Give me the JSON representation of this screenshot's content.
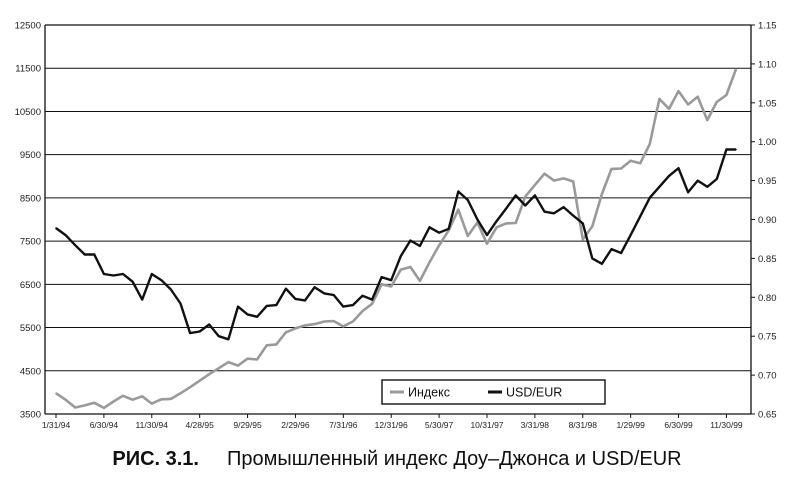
{
  "caption": {
    "figure_label": "РИС. 3.1.",
    "text": "Промышленный индекс Доу–Джонса и USD/EUR"
  },
  "chart_data": {
    "type": "line",
    "title": "",
    "x": [
      "1/31/94",
      "2/28/94",
      "3/31/94",
      "4/30/94",
      "5/31/94",
      "6/30/94",
      "7/31/94",
      "8/31/94",
      "9/30/94",
      "10/31/94",
      "11/30/94",
      "12/31/94",
      "1/31/95",
      "2/28/95",
      "3/31/95",
      "4/28/95",
      "5/31/95",
      "6/30/95",
      "7/31/95",
      "8/31/95",
      "9/29/95",
      "10/31/95",
      "11/30/95",
      "12/31/95",
      "1/31/96",
      "2/29/96",
      "3/31/96",
      "4/30/96",
      "5/31/96",
      "6/30/96",
      "7/31/96",
      "8/31/96",
      "9/30/96",
      "10/31/96",
      "11/30/96",
      "12/31/96",
      "1/31/97",
      "2/28/97",
      "3/31/97",
      "4/30/97",
      "5/30/97",
      "6/30/97",
      "7/31/97",
      "8/31/97",
      "9/30/97",
      "10/31/97",
      "11/30/97",
      "12/31/97",
      "1/31/98",
      "2/28/98",
      "3/31/98",
      "4/30/98",
      "5/31/98",
      "6/30/98",
      "7/31/98",
      "8/31/98",
      "9/30/98",
      "10/31/98",
      "11/30/98",
      "12/31/98",
      "1/29/99",
      "2/28/99",
      "3/31/99",
      "4/30/99",
      "5/31/99",
      "6/30/99",
      "7/31/99",
      "8/31/99",
      "9/30/99",
      "10/31/99",
      "11/30/99",
      "12/31/99"
    ],
    "x_tick_labels": [
      "1/31/94",
      "6/30/94",
      "11/30/94",
      "4/28/95",
      "9/29/95",
      "2/29/96",
      "7/31/96",
      "12/31/96",
      "5/30/97",
      "10/31/97",
      "3/31/98",
      "8/31/98",
      "1/29/99",
      "6/30/99",
      "11/30/99"
    ],
    "y_left": {
      "range": [
        3500,
        12500
      ],
      "ticks": [
        "3500",
        "4500",
        "5500",
        "6500",
        "7500",
        "8500",
        "9500",
        "10500",
        "11500",
        "12500"
      ]
    },
    "y_right": {
      "range": [
        0.65,
        1.15
      ],
      "ticks": [
        "0.65",
        "0.70",
        "0.75",
        "0.80",
        "0.85",
        "0.90",
        "0.95",
        "1.00",
        "1.05",
        "1.10",
        "1.15"
      ]
    },
    "grid": "horizontal",
    "legend_position": "bottom-right",
    "series": [
      {
        "name": "Индекс",
        "axis": "left",
        "color": "#9a9a9a",
        "values": [
          3980,
          3830,
          3650,
          3700,
          3760,
          3640,
          3790,
          3920,
          3830,
          3910,
          3740,
          3840,
          3850,
          3980,
          4120,
          4270,
          4420,
          4560,
          4700,
          4620,
          4780,
          4760,
          5090,
          5110,
          5390,
          5480,
          5550,
          5580,
          5640,
          5650,
          5530,
          5640,
          5880,
          6050,
          6500,
          6450,
          6840,
          6900,
          6580,
          7010,
          7400,
          7750,
          8230,
          7620,
          7930,
          7440,
          7820,
          7910,
          7920,
          8530,
          8800,
          9060,
          8900,
          8950,
          8880,
          7540,
          7840,
          8590,
          9170,
          9180,
          9360,
          9300,
          9750,
          10790,
          10560,
          10970,
          10660,
          10840,
          10300,
          10720,
          10880,
          11480
        ]
      },
      {
        "name": "USD/EUR",
        "axis": "right",
        "color": "#111111",
        "values": [
          0.889,
          0.88,
          0.867,
          0.855,
          0.855,
          0.83,
          0.828,
          0.83,
          0.82,
          0.797,
          0.83,
          0.822,
          0.81,
          0.792,
          0.754,
          0.756,
          0.765,
          0.75,
          0.746,
          0.788,
          0.778,
          0.775,
          0.789,
          0.79,
          0.811,
          0.798,
          0.796,
          0.813,
          0.805,
          0.803,
          0.788,
          0.79,
          0.802,
          0.797,
          0.826,
          0.822,
          0.853,
          0.873,
          0.866,
          0.89,
          0.883,
          0.888,
          0.936,
          0.925,
          0.9,
          0.88,
          0.898,
          0.914,
          0.931,
          0.918,
          0.931,
          0.91,
          0.908,
          0.916,
          0.905,
          0.895,
          0.85,
          0.843,
          0.862,
          0.857,
          0.88,
          0.904,
          0.928,
          0.942,
          0.956,
          0.966,
          0.935,
          0.95,
          0.942,
          0.952,
          0.99,
          0.99
        ]
      }
    ]
  }
}
